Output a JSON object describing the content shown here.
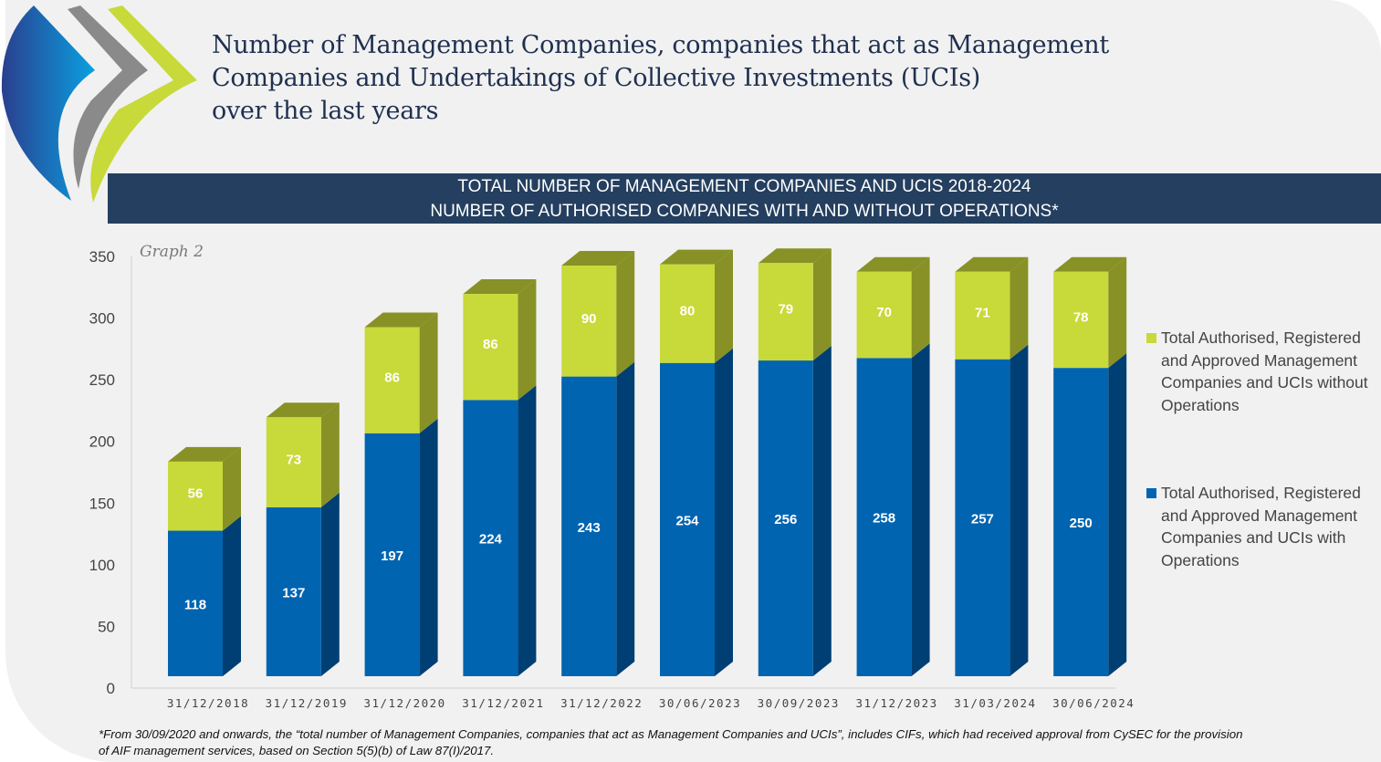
{
  "title": {
    "lines": [
      "Number of Management Companies, companies that act as Management",
      "Companies and Undertakings of Collective Investments (UCIs)",
      "over the last years"
    ]
  },
  "banner": {
    "line1": "TOTAL NUMBER OF MANAGEMENT COMPANIES AND UCIS 2018-2024",
    "line2": "NUMBER OF AUTHORISED COMPANIES WITH AND WITHOUT OPERATIONS*"
  },
  "graph_label": "Graph 2",
  "footnote": {
    "line1": "*From 30/09/2020 and onwards, the “total number of Management Companies, companies that act as Management Companies and UCIs”, includes CIFs, which had received approval from CySEC for the provision",
    "line2": "of AIF management services, based on Section 5(5)(b) of Law 87(I)/2017."
  },
  "colors": {
    "with_operations": "#0064b0",
    "with_operations_side": "#003f73",
    "without_operations": "#c8d93a",
    "without_operations_side": "#879126",
    "banner": "#243f5f"
  },
  "chart_data": {
    "type": "bar",
    "stacked": true,
    "three_d": true,
    "categories": [
      "31/12/2018",
      "31/12/2019",
      "31/12/2020",
      "31/12/2021",
      "31/12/2022",
      "30/06/2023",
      "30/09/2023",
      "31/12/2023",
      "31/03/2024",
      "30/06/2024"
    ],
    "series": [
      {
        "name": "Total Authorised, Registered and Approved Management Companies and UCIs with Operations",
        "values": [
          118,
          137,
          197,
          224,
          243,
          254,
          256,
          258,
          257,
          250
        ]
      },
      {
        "name": "Total Authorised, Registered and Approved Management Companies and UCIs without Operations",
        "values": [
          56,
          73,
          86,
          86,
          90,
          80,
          79,
          70,
          71,
          78
        ]
      }
    ],
    "ylim": [
      0,
      350
    ],
    "yticks": [
      0,
      50,
      100,
      150,
      200,
      250,
      300,
      350
    ],
    "grid": false,
    "legend": "right",
    "data_labels": true
  }
}
